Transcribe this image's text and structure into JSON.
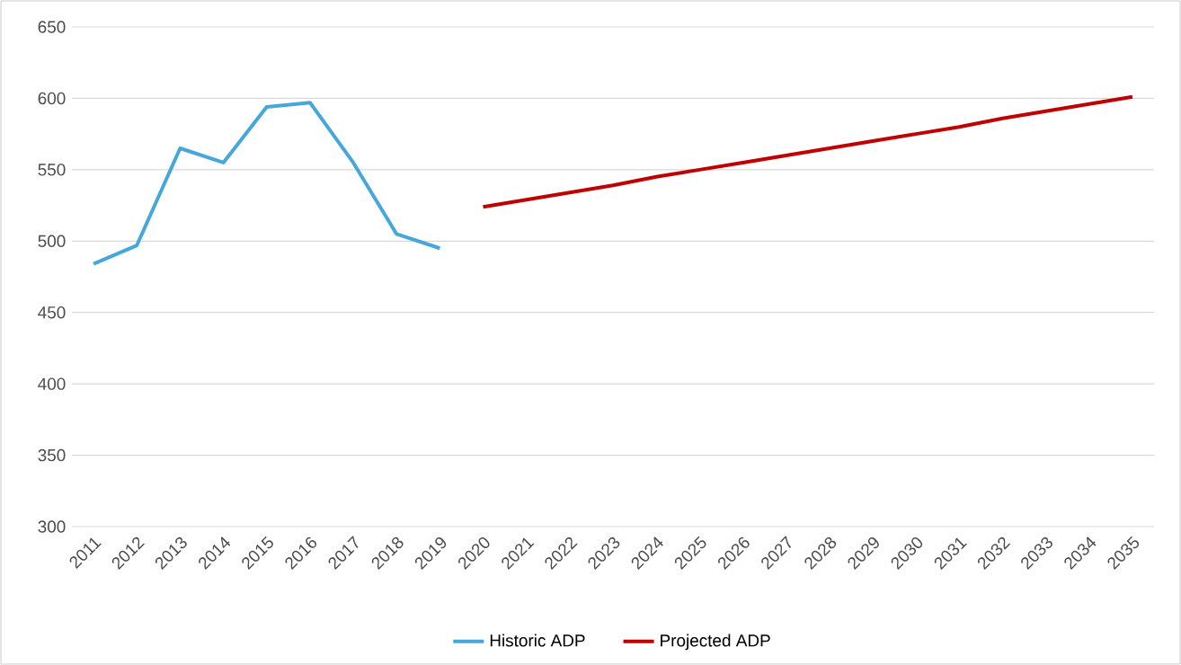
{
  "chart_data": {
    "type": "line",
    "categories": [
      "2011",
      "2012",
      "2013",
      "2014",
      "2015",
      "2016",
      "2017",
      "2018",
      "2019",
      "2020",
      "2021",
      "2022",
      "2023",
      "2024",
      "2025",
      "2026",
      "2027",
      "2028",
      "2029",
      "2030",
      "2031",
      "2032",
      "2033",
      "2034",
      "2035"
    ],
    "series": [
      {
        "name": "Historic ADP",
        "color": "#45a7dc",
        "values": [
          484,
          497,
          565,
          555,
          594,
          597,
          555,
          505,
          495,
          null,
          null,
          null,
          null,
          null,
          null,
          null,
          null,
          null,
          null,
          null,
          null,
          null,
          null,
          null,
          null
        ]
      },
      {
        "name": "Projected ADP",
        "color": "#c00000",
        "values": [
          null,
          null,
          null,
          null,
          null,
          null,
          null,
          null,
          null,
          524,
          529,
          534,
          539,
          545,
          550,
          555,
          560,
          565,
          570,
          575,
          580,
          586,
          591,
          596,
          601
        ]
      }
    ],
    "ylim": [
      300,
      650
    ],
    "yticks": [
      300,
      350,
      400,
      450,
      500,
      550,
      600,
      650
    ],
    "grid": "y",
    "legend": "bottom",
    "marker": "none",
    "line_style": "solid"
  }
}
